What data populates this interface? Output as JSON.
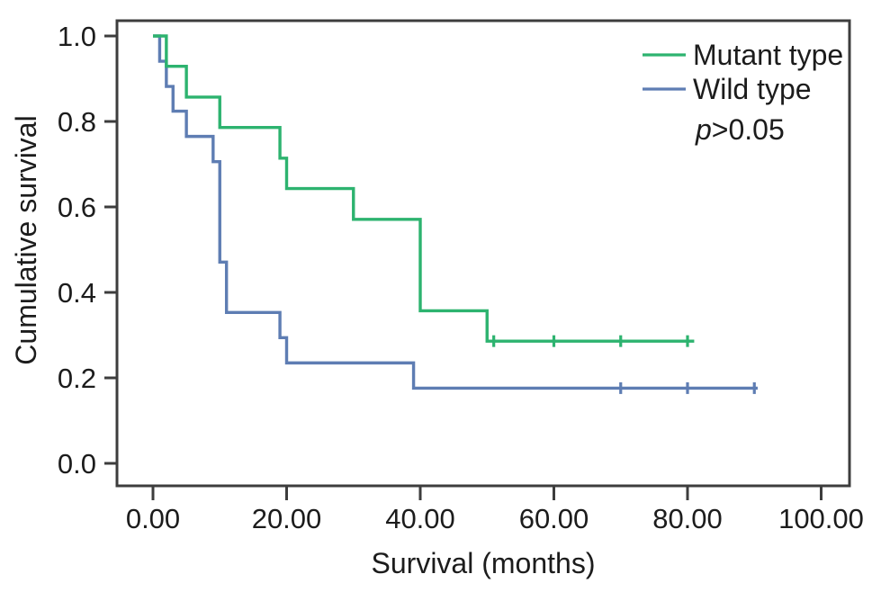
{
  "figure": {
    "kind": "kaplan-meier-survival-plot",
    "background": "#ffffff",
    "axis_color": "#3d3d3d",
    "text_color": "#1c1c1c"
  },
  "chart_data": {
    "type": "line",
    "subtype": "step-survival",
    "title": "",
    "xlabel": "Survival (months)",
    "ylabel": "Cumulative survival",
    "xlim": [
      -5.4,
      104.4
    ],
    "ylim": [
      -0.05,
      1.04
    ],
    "grid": false,
    "legend_position": "top-right",
    "x_ticks": [
      0,
      20,
      40,
      60,
      80,
      100
    ],
    "x_tick_labels": [
      "0.00",
      "20.00",
      "40.00",
      "60.00",
      "80.00",
      "100.00"
    ],
    "y_ticks": [
      0.0,
      0.2,
      0.4,
      0.6,
      0.8,
      1.0
    ],
    "y_tick_labels": [
      "0.0",
      "0.2",
      "0.4",
      "0.6",
      "0.8",
      "1.0"
    ],
    "annotation": {
      "p_italic": "p",
      "p_rest": ">0.05"
    },
    "series": [
      {
        "name": "Wild type",
        "color": "#5e7db3",
        "steps": [
          [
            0,
            1.0
          ],
          [
            1,
            0.941
          ],
          [
            2,
            0.882
          ],
          [
            3,
            0.824
          ],
          [
            5,
            0.765
          ],
          [
            9,
            0.706
          ],
          [
            10,
            0.471
          ],
          [
            11,
            0.353
          ],
          [
            19,
            0.294
          ],
          [
            20,
            0.235
          ],
          [
            39,
            0.176
          ]
        ],
        "end_x": 90.5,
        "censored_x": [
          70,
          80,
          90
        ]
      },
      {
        "name": "Mutant type",
        "color": "#2db36f",
        "steps": [
          [
            0,
            1.0
          ],
          [
            2,
            0.929
          ],
          [
            5,
            0.857
          ],
          [
            10,
            0.786
          ],
          [
            19,
            0.714
          ],
          [
            20,
            0.643
          ],
          [
            30,
            0.571
          ],
          [
            40,
            0.357
          ],
          [
            50,
            0.286
          ]
        ],
        "end_x": 81,
        "censored_x": [
          51,
          60,
          70,
          80
        ]
      }
    ],
    "legend_order": [
      "Mutant type",
      "Wild type"
    ]
  }
}
